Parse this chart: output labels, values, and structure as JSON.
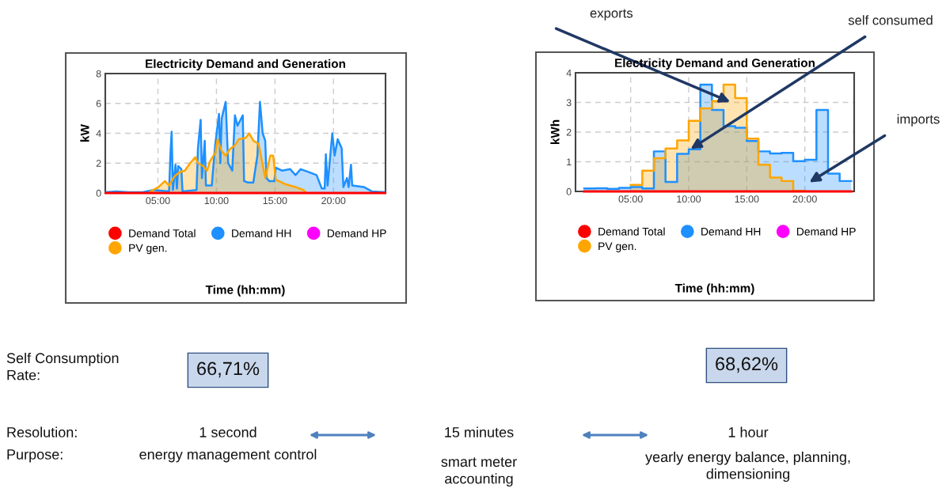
{
  "chart_data": [
    {
      "type": "area",
      "title": "Electricity Demand and Generation",
      "xlabel": "Time (hh:mm)",
      "ylabel": "kW",
      "xlim": [
        0.5,
        24.45
      ],
      "xticks": [
        {
          "value": 5,
          "label": "05:00"
        },
        {
          "value": 10,
          "label": "10:00"
        },
        {
          "value": 15,
          "label": "15:00"
        },
        {
          "value": 20,
          "label": "20:00"
        }
      ],
      "ylim": [
        0,
        8
      ],
      "yticks": [
        0,
        2,
        4,
        6,
        8
      ],
      "grid": true,
      "legend": "bottom",
      "series": [
        {
          "name": "Demand Total",
          "color": "#ff0000",
          "type": "line",
          "x": [
            0.54,
            24.4
          ],
          "values": [
            0,
            0
          ]
        },
        {
          "name": "Demand HH",
          "color": "#1e90ff",
          "x": [
            0.54,
            1.44,
            2.5,
            3.7,
            4.6,
            5.95,
            6.06,
            6.17,
            6.28,
            6.5,
            6.62,
            6.73,
            7.0,
            7.1,
            8.3,
            8.42,
            8.65,
            8.76,
            9.0,
            9.1,
            9.6,
            9.89,
            10.22,
            10.33,
            10.45,
            10.79,
            11.0,
            11.35,
            11.58,
            11.8,
            12.25,
            12.36,
            12.7,
            13.15,
            13.5,
            13.72,
            13.95,
            14.17,
            14.28,
            14.5,
            14.95,
            15.07,
            15.6,
            16.3,
            16.76,
            17.2,
            17.9,
            18.56,
            19.0,
            19.25,
            19.35,
            19.5,
            19.9,
            20.1,
            20.36,
            20.7,
            20.85,
            21.15,
            21.3,
            21.5,
            21.6,
            22.6,
            23.3,
            24.4
          ],
          "values": [
            0.05,
            0.1,
            0.05,
            0.05,
            0.2,
            0.1,
            2.5,
            4.1,
            0.2,
            1.9,
            0.3,
            1.8,
            1.6,
            0.1,
            0.2,
            3.0,
            4.9,
            1.0,
            3.5,
            0.5,
            0.5,
            3.2,
            5.3,
            2.0,
            5.0,
            6.1,
            2.0,
            1.5,
            5.2,
            4.5,
            5.2,
            0.8,
            0.7,
            0.7,
            2.5,
            6.1,
            4.0,
            3.5,
            1.0,
            0.8,
            0.8,
            1.7,
            1.5,
            1.6,
            1.2,
            1.6,
            1.4,
            1.2,
            0.3,
            0.3,
            2.6,
            0.5,
            4.0,
            2.5,
            3.6,
            3.0,
            0.4,
            1.0,
            0.4,
            1.9,
            0.5,
            0.4,
            0.1,
            0.05
          ]
        },
        {
          "name": "Demand HP",
          "color": "#ff00ff",
          "type": "line"
        },
        {
          "name": "PV gen.",
          "color": "#ffa500",
          "x": [
            4.3,
            4.37,
            5.05,
            5.6,
            5.95,
            6.4,
            6.85,
            7.3,
            7.75,
            8.2,
            8.42,
            8.87,
            9.2,
            9.43,
            9.9,
            10.1,
            10.45,
            10.8,
            11.1,
            11.58,
            11.9,
            12.5,
            12.8,
            13.15,
            13.6,
            14.17,
            14.6,
            14.85,
            15.07,
            15.86,
            16.76,
            17.43,
            17.7
          ],
          "values": [
            0,
            0.1,
            0.4,
            0.8,
            0.5,
            1.1,
            1.4,
            1.5,
            2.0,
            2.4,
            2.0,
            1.8,
            1.5,
            2.1,
            2.7,
            3.6,
            2.8,
            2.5,
            2.9,
            3.2,
            3.6,
            3.7,
            4.0,
            3.5,
            3.3,
            1.0,
            2.5,
            2.5,
            0.9,
            0.6,
            0.4,
            0.2,
            0
          ]
        }
      ]
    },
    {
      "type": "area",
      "title": "Electricity Demand and Generation",
      "xlabel": "Time (hh:mm)",
      "ylabel": "kWh",
      "xlim": [
        0.25,
        24.25
      ],
      "xticks": [
        {
          "value": 5,
          "label": "05:00"
        },
        {
          "value": 10,
          "label": "10:00"
        },
        {
          "value": 15,
          "label": "15:00"
        },
        {
          "value": 20,
          "label": "20:00"
        }
      ],
      "ylim": [
        0,
        4
      ],
      "yticks": [
        0,
        1,
        2,
        3,
        4
      ],
      "grid": true,
      "legend": "bottom",
      "series": [
        {
          "name": "Demand Total",
          "color": "#ff0000",
          "type": "line",
          "x": [
            1,
            24
          ],
          "values": [
            0,
            0
          ]
        },
        {
          "name": "Demand HH",
          "color": "#1e90ff",
          "x": [
            1,
            2,
            2,
            3,
            3,
            4,
            4,
            5,
            5,
            6,
            6,
            7,
            7,
            8,
            8,
            9,
            9,
            10,
            10,
            11,
            11,
            12,
            12,
            13,
            13,
            14,
            14,
            15,
            15,
            16,
            16,
            17,
            17,
            18,
            18,
            19,
            19,
            20,
            20,
            21,
            21,
            22,
            22,
            23,
            23,
            24
          ],
          "values": [
            0.1,
            0.1,
            0.11,
            0.11,
            0.09,
            0.09,
            0.12,
            0.12,
            0.15,
            0.15,
            0.1,
            0.1,
            1.35,
            1.35,
            0.32,
            0.32,
            1.27,
            1.27,
            1.42,
            1.42,
            3.6,
            3.6,
            2.75,
            2.75,
            2.2,
            2.2,
            2.15,
            2.15,
            1.7,
            1.7,
            1.35,
            1.35,
            1.28,
            1.28,
            1.3,
            1.3,
            1.02,
            1.02,
            1.07,
            1.07,
            2.75,
            2.75,
            0.6,
            0.6,
            0.35,
            0.35
          ]
        },
        {
          "name": "Demand HP",
          "color": "#ff00ff",
          "type": "line"
        },
        {
          "name": "PV gen.",
          "color": "#ffa500",
          "x": [
            5,
            6,
            6,
            7,
            7,
            8,
            8,
            9,
            9,
            10,
            10,
            11,
            11,
            12,
            12,
            13,
            13,
            14,
            14,
            15,
            15,
            16,
            16,
            17,
            17,
            18,
            18,
            19,
            19,
            20
          ],
          "values": [
            0.22,
            0.22,
            0.7,
            0.7,
            1.12,
            1.12,
            1.45,
            1.45,
            1.72,
            1.72,
            2.38,
            2.38,
            2.8,
            2.8,
            3.05,
            3.05,
            3.6,
            3.6,
            3.15,
            3.15,
            1.78,
            1.78,
            0.9,
            0.9,
            0.47,
            0.47,
            0.35,
            0.35,
            0.02,
            0.02
          ]
        }
      ],
      "annotations": [
        "exports",
        "self consumed",
        "imports"
      ]
    },
    {
      "type": "other",
      "annotations": [
        "Self Consumption\nRate:",
        "66,71%",
        "68,62%",
        "Resolution:",
        "Purpose:",
        "1 second",
        "energy management control",
        "15 minutes",
        "smart meter\naccounting",
        "1 hour",
        "yearly energy balance, planning,\ndimensioning"
      ]
    }
  ]
}
